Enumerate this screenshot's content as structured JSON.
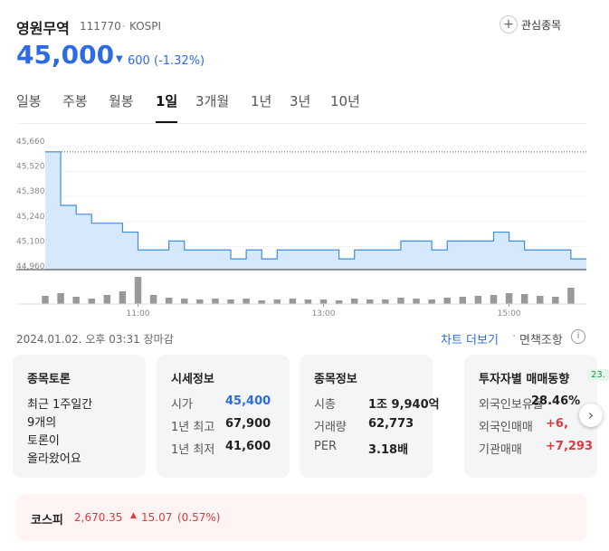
{
  "header": {
    "name": "영원무역",
    "code": "111770",
    "market": "KOSPI",
    "watch": "관심종목",
    "price": "45,000",
    "change": "600",
    "change_pct": "(-1.32%)"
  },
  "tabs": [
    "일봉",
    "주봉",
    "월봉",
    "1일",
    "3개월",
    "1년",
    "3년",
    "10년"
  ],
  "active_tab": 3,
  "chart": {
    "type": "line",
    "color": "#3f8ee0",
    "fill": "#d6e9fc",
    "x": [
      "10:00",
      "10:10",
      "10:20",
      "10:30",
      "10:40",
      "10:50",
      "11:00",
      "11:10",
      "11:20",
      "11:30",
      "11:40",
      "11:50",
      "12:00",
      "12:10",
      "12:20",
      "12:30",
      "12:40",
      "12:50",
      "13:00",
      "13:10",
      "13:20",
      "13:30",
      "13:40",
      "13:50",
      "14:00",
      "14:10",
      "14:20",
      "14:30",
      "14:40",
      "14:50",
      "15:00",
      "15:10",
      "15:20",
      "15:30",
      "15:40",
      "15:50"
    ],
    "values": [
      45600,
      45300,
      45250,
      45200,
      45200,
      45150,
      45050,
      45050,
      45100,
      45050,
      45050,
      45050,
      45000,
      45050,
      45000,
      45050,
      45050,
      45050,
      45050,
      45000,
      45050,
      45050,
      45050,
      45100,
      45100,
      45050,
      45100,
      45100,
      45100,
      45150,
      45100,
      45050,
      45050,
      45050,
      45000,
      45000
    ],
    "volume": [
      9,
      12,
      8,
      6,
      10,
      14,
      30,
      10,
      7,
      6,
      5,
      6,
      5,
      6,
      4,
      5,
      6,
      5,
      5,
      4,
      6,
      5,
      5,
      7,
      6,
      5,
      7,
      8,
      9,
      10,
      12,
      11,
      9,
      8,
      18,
      0
    ],
    "reference": 45600,
    "ylim": [
      44960,
      45660
    ],
    "yticks": [
      {
        "value": 45660,
        "label": "45,660"
      },
      {
        "value": 45520,
        "label": "45,520"
      },
      {
        "value": 45380,
        "label": "45,380"
      },
      {
        "value": 45240,
        "label": "45,240"
      },
      {
        "value": 45100,
        "label": "45,100"
      },
      {
        "value": 44960,
        "label": "44,960"
      }
    ],
    "xticks": [
      "11:00",
      "13:00",
      "15:00"
    ]
  },
  "status": "2024.01.02. 오후 03:31 장마감",
  "more": "차트 더보기",
  "disclaimer": "면책조항",
  "cards": [
    {
      "title": "종목토론",
      "lines": [
        "최근 1주일간",
        "9개의",
        "토론이",
        "올라왔어요"
      ]
    },
    {
      "title": "시세정보",
      "rows": [
        [
          "시가",
          "45,400"
        ],
        [
          "1년 최고",
          "67,900"
        ],
        [
          "1년 최저",
          "41,600"
        ]
      ]
    },
    {
      "title": "종목정보",
      "rows": [
        [
          "시총",
          "1조 9,940억"
        ],
        [
          "거래량",
          "62,773"
        ],
        [
          "PER",
          "3.18배"
        ]
      ]
    },
    {
      "title": "투자자별 매매동향",
      "badge": "23.",
      "rows": [
        [
          "외국인보유율",
          "28.46%"
        ],
        [
          "외국인매매",
          "+6,"
        ],
        [
          "기관매매",
          "+7,293"
        ]
      ]
    }
  ],
  "index": {
    "name": "코스피",
    "value": "2,670.35",
    "change": "15.07",
    "pct": "(0.57%)"
  }
}
